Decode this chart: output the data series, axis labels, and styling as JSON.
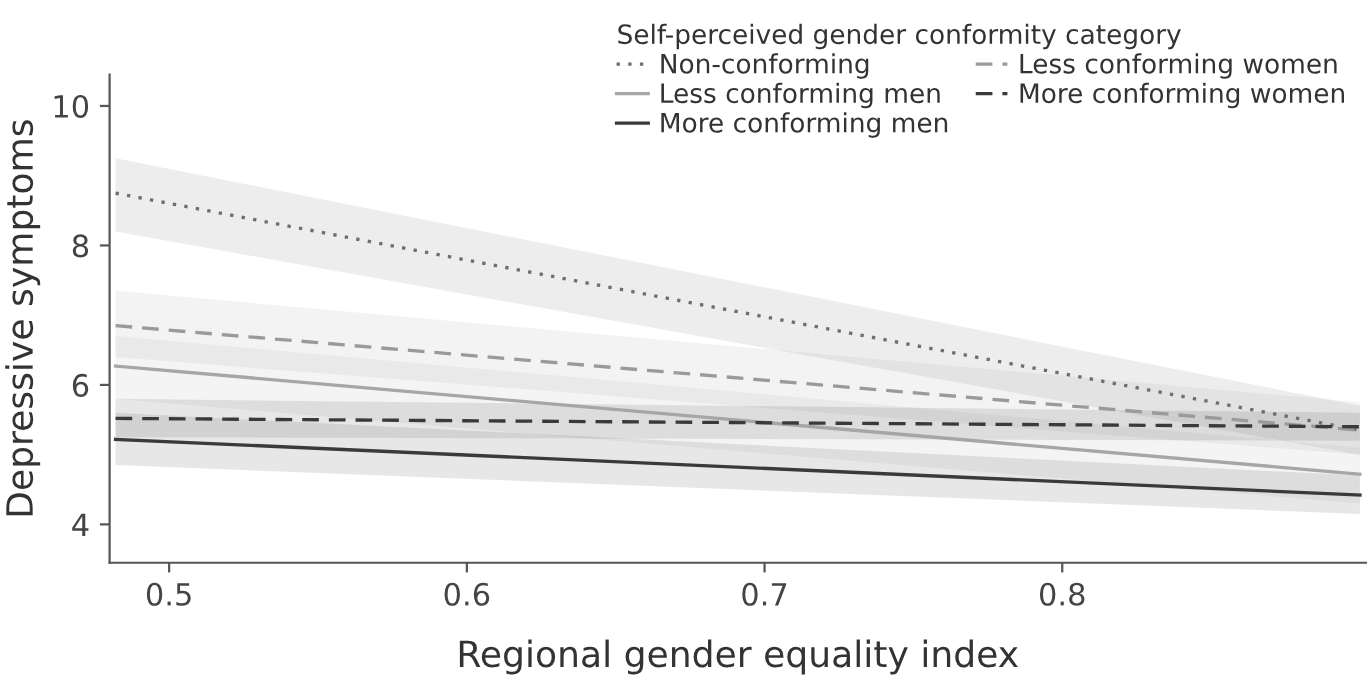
{
  "chart_data": {
    "type": "line",
    "xlabel": "Regional gender equality index",
    "ylabel": "Depressive symptoms",
    "legend_title": "Self-perceived gender conformity category",
    "xlim": [
      0.48,
      0.902
    ],
    "ylim": [
      3.45,
      10.45
    ],
    "xticks": [
      0.5,
      0.6,
      0.7,
      0.8
    ],
    "yticks": [
      4,
      6,
      8,
      10
    ],
    "grid": false,
    "legend": "top right",
    "marker": "none",
    "x": [
      0.482,
      0.9
    ],
    "series": [
      {
        "name": "Non-conforming",
        "color": "#6e6e6e",
        "line_style": "dotted",
        "values": [
          8.75,
          5.35
        ],
        "lower": [
          8.2,
          5.0
        ],
        "upper": [
          9.25,
          5.7
        ]
      },
      {
        "name": "Less conforming men",
        "color": "#a6a6a6",
        "line_style": "solid",
        "values": [
          6.27,
          4.72
        ],
        "lower": [
          5.8,
          4.3
        ],
        "upper": [
          6.7,
          5.1
        ]
      },
      {
        "name": "More conforming men",
        "color": "#3a3a3a",
        "line_style": "solid",
        "values": [
          5.22,
          4.42
        ],
        "lower": [
          4.85,
          4.15
        ],
        "upper": [
          5.6,
          4.7
        ]
      },
      {
        "name": "Less conforming women",
        "color": "#9a9a9a",
        "line_style": "dashed",
        "values": [
          6.85,
          5.35
        ],
        "lower": [
          6.4,
          5.0
        ],
        "upper": [
          7.35,
          5.75
        ]
      },
      {
        "name": "More conforming women",
        "color": "#3a3a3a",
        "line_style": "dashed",
        "values": [
          5.52,
          5.4
        ],
        "lower": [
          5.25,
          5.2
        ],
        "upper": [
          5.8,
          5.6
        ]
      }
    ]
  }
}
